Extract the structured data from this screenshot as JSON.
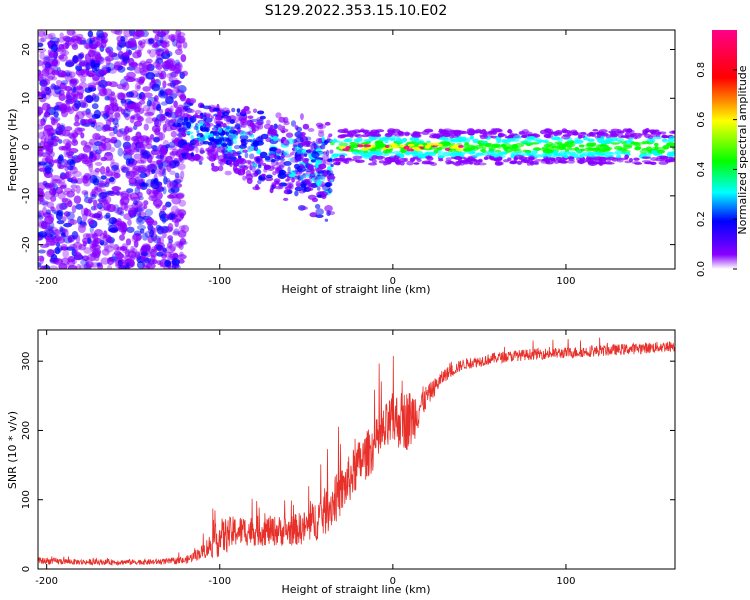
{
  "figure": {
    "title": "S129.2022.353.15.10.E02"
  },
  "chart_data": [
    {
      "type": "heatmap",
      "title": "S129.2022.353.15.10.E02",
      "xlabel": "Height of straight line (km)",
      "ylabel": "Frequency (Hz)",
      "xlim": [
        -205,
        163
      ],
      "ylim": [
        -25,
        24
      ],
      "xticks": [
        -200,
        -100,
        0,
        100
      ],
      "yticks": [
        -20,
        -10,
        0,
        10,
        20
      ],
      "colorbar": {
        "label": "Normalized spectral amplitude",
        "range": [
          0,
          0.96
        ],
        "ticks": [
          "0.0",
          "0.2",
          "0.4",
          "0.6",
          "0.8"
        ],
        "colors": [
          "#ffffff",
          "#8800ff",
          "#0000ff",
          "#00ffff",
          "#00ff00",
          "#ffff00",
          "#ff0000",
          "#ff0088"
        ]
      },
      "features": [
        {
          "x_range": [
            -205,
            -120
          ],
          "f_range": [
            -25,
            24
          ],
          "amplitude": 0.1,
          "note": "broadband noise"
        },
        {
          "x_range": [
            -120,
            -35
          ],
          "f_center_start": 4,
          "f_center_end": -8,
          "amplitude": 0.3
        },
        {
          "x_range": [
            -35,
            163
          ],
          "f_center": 0,
          "amplitude": 0.4
        },
        {
          "x_range": [
            -30,
            40
          ],
          "f_center": 0,
          "amplitude": 0.85,
          "note": "red peaks near 0 Hz"
        }
      ],
      "grid": false
    },
    {
      "type": "line",
      "xlabel": "Height of straight line (km)",
      "ylabel": "SNR (10 * v/v)",
      "xlim": [
        -205,
        163
      ],
      "ylim": [
        0,
        345
      ],
      "xticks": [
        -200,
        -100,
        0,
        100
      ],
      "yticks": [
        0,
        100,
        200,
        300
      ],
      "color": "#e8302a",
      "series": [
        {
          "x": [
            -205,
            -180,
            -160,
            -140,
            -120,
            -110,
            -100,
            -90,
            -80,
            -70,
            -60,
            -50,
            -40,
            -30,
            -20,
            -10,
            0,
            10,
            20,
            30,
            40,
            60,
            80,
            100,
            120,
            140,
            163
          ],
          "values": [
            12,
            10,
            10,
            10,
            12,
            25,
            45,
            55,
            55,
            55,
            55,
            60,
            80,
            110,
            150,
            180,
            215,
            215,
            250,
            280,
            295,
            305,
            310,
            312,
            315,
            318,
            322
          ],
          "noise": [
            5,
            4,
            4,
            4,
            5,
            10,
            28,
            22,
            22,
            22,
            22,
            25,
            35,
            35,
            35,
            35,
            40,
            45,
            15,
            10,
            8,
            8,
            8,
            8,
            8,
            8,
            8
          ]
        }
      ],
      "grid": false
    }
  ]
}
